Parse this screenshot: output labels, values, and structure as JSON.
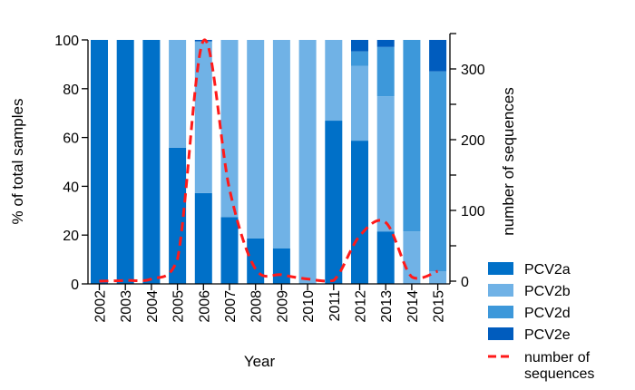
{
  "chart_data": {
    "type": "bar",
    "stacked": true,
    "categories": [
      "2002",
      "2003",
      "2004",
      "2005",
      "2006",
      "2007",
      "2008",
      "2009",
      "2010",
      "2011",
      "2012",
      "2013",
      "2014",
      "2015"
    ],
    "xlabel": "Year",
    "ylabel": "% of total samples",
    "ylim": [
      0,
      100
    ],
    "yticks": [
      0,
      20,
      40,
      60,
      80,
      100
    ],
    "y2label": "number of sequences",
    "y2lim": [
      0,
      350
    ],
    "y2ticks": [
      0,
      100,
      200,
      300
    ],
    "series": [
      {
        "name": "PCV2a",
        "color": "#0070C8",
        "values": [
          100,
          100,
          100,
          55.8,
          37.2,
          27.4,
          18.6,
          14.5,
          0,
          66.9,
          58.7,
          21.5,
          0,
          0
        ]
      },
      {
        "name": "PCV2b",
        "color": "#70B2E6",
        "values": [
          0,
          0,
          0,
          44.2,
          62.2,
          72.6,
          81.4,
          85.5,
          100,
          33.1,
          30.6,
          55.4,
          21.5,
          5.2
        ]
      },
      {
        "name": "PCV2d",
        "color": "#3D98DA",
        "values": [
          0,
          0,
          0,
          0,
          0,
          0,
          0,
          0,
          0,
          0,
          6.0,
          20.2,
          78.5,
          81.9
        ]
      },
      {
        "name": "PCV2e",
        "color": "#005CBE",
        "values": [
          0,
          0,
          0,
          0,
          0.6,
          0,
          0,
          0,
          0,
          0,
          4.7,
          2.9,
          0,
          12.9
        ]
      }
    ],
    "line": {
      "name": "number of sequences",
      "name_lines": [
        "number of",
        "sequences"
      ],
      "color": "#FF1A1A",
      "style": "dashed",
      "axis": "right",
      "values": [
        0,
        1,
        3,
        31,
        340,
        130,
        17,
        9,
        3,
        1,
        64,
        83,
        6,
        14
      ]
    },
    "grid": false,
    "legend_placement": "bottom-right"
  }
}
